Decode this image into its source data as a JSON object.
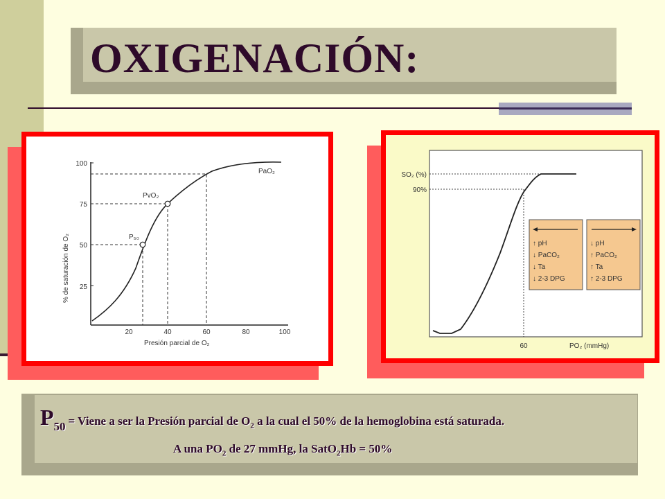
{
  "slide": {
    "title": "OXIGENACIÓN:"
  },
  "left_chart": {
    "y_axis_label": "% de saturación de O₂",
    "x_axis_label": "Presión parcial de O₂",
    "y_ticks": [
      "100",
      "75",
      "50",
      "25"
    ],
    "x_ticks": [
      "20",
      "40",
      "60",
      "80",
      "100"
    ],
    "labels": {
      "pao2": "PaO₂",
      "pvo2": "PvO₂",
      "p50": "P₅₀"
    },
    "colors": {
      "curve": "#222222",
      "frame": "#ff0000"
    }
  },
  "right_chart": {
    "y_labels": {
      "so2": "SO₂ (%)",
      "ninety": "90%"
    },
    "x_labels": {
      "sixty": "60",
      "po2": "PO₂ (mmHg)"
    },
    "left_box": {
      "lines": [
        "↑ pH",
        "↓ PaCO₂",
        "↓ Ta",
        "↓ 2-3 DPG"
      ]
    },
    "right_box": {
      "lines": [
        "↓ pH",
        "↑ PaCO₂",
        "↑ Ta",
        "↑ 2-3 DPG"
      ]
    },
    "colors": {
      "box_fill": "#f5c890",
      "frame": "#ff0000",
      "background": "#fafac8"
    }
  },
  "definition": {
    "p": "P",
    "p_sub": "50",
    "eq": "= Viene a ser la Presión parcial de O",
    "o2_sub": "2",
    "rest": " a la cual el 50% de la hemoglobina está saturada.",
    "line2_a": "A una PO",
    "line2_sub1": "2",
    "line2_b": " de 27 mmHg, la SatO",
    "line2_sub2": "2",
    "line2_c": "Hb = 50%"
  }
}
